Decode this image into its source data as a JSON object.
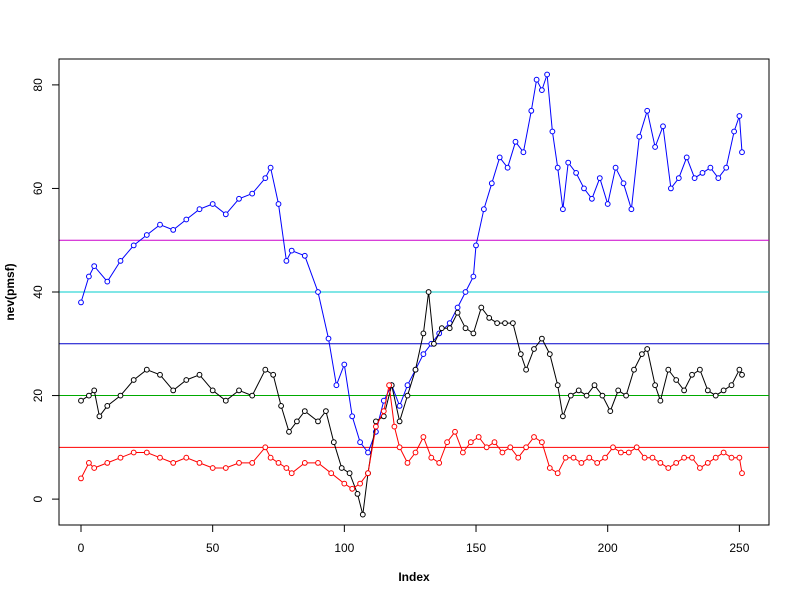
{
  "chart_data": {
    "type": "line",
    "title": "",
    "xlabel": "Index",
    "ylabel": "nev(pmsf)",
    "xlim": [
      0,
      251
    ],
    "ylim": [
      -5,
      85
    ],
    "x_ticks": [
      0,
      50,
      100,
      150,
      200,
      250
    ],
    "y_ticks": [
      0,
      20,
      40,
      60,
      80
    ],
    "grid": false,
    "legend": "none",
    "markers": "open-circle",
    "hlines": [
      {
        "y": 10,
        "color": "#ff0000"
      },
      {
        "y": 20,
        "color": "#00aa00"
      },
      {
        "y": 30,
        "color": "#0000cc"
      },
      {
        "y": 40,
        "color": "#00cccc"
      },
      {
        "y": 50,
        "color": "#cc00cc"
      }
    ],
    "series": [
      {
        "color": "#0000ff",
        "points": [
          [
            0,
            38
          ],
          [
            3,
            43
          ],
          [
            5,
            45
          ],
          [
            10,
            42
          ],
          [
            15,
            46
          ],
          [
            20,
            49
          ],
          [
            25,
            51
          ],
          [
            30,
            53
          ],
          [
            35,
            52
          ],
          [
            40,
            54
          ],
          [
            45,
            56
          ],
          [
            50,
            57
          ],
          [
            55,
            55
          ],
          [
            60,
            58
          ],
          [
            65,
            59
          ],
          [
            70,
            62
          ],
          [
            72,
            64
          ],
          [
            75,
            57
          ],
          [
            78,
            46
          ],
          [
            80,
            48
          ],
          [
            85,
            47
          ],
          [
            90,
            40
          ],
          [
            94,
            31
          ],
          [
            97,
            22
          ],
          [
            100,
            26
          ],
          [
            103,
            16
          ],
          [
            106,
            11
          ],
          [
            109,
            9
          ],
          [
            112,
            13
          ],
          [
            115,
            19
          ],
          [
            118,
            22
          ],
          [
            121,
            18
          ],
          [
            124,
            22
          ],
          [
            127,
            25
          ],
          [
            130,
            28
          ],
          [
            133,
            30
          ],
          [
            136,
            32
          ],
          [
            140,
            34
          ],
          [
            143,
            37
          ],
          [
            146,
            40
          ],
          [
            149,
            43
          ],
          [
            150,
            49
          ],
          [
            153,
            56
          ],
          [
            156,
            61
          ],
          [
            159,
            66
          ],
          [
            162,
            64
          ],
          [
            165,
            69
          ],
          [
            168,
            67
          ],
          [
            171,
            75
          ],
          [
            173,
            81
          ],
          [
            175,
            79
          ],
          [
            177,
            82
          ],
          [
            179,
            71
          ],
          [
            181,
            64
          ],
          [
            183,
            56
          ],
          [
            185,
            65
          ],
          [
            188,
            63
          ],
          [
            191,
            60
          ],
          [
            194,
            58
          ],
          [
            197,
            62
          ],
          [
            200,
            57
          ],
          [
            203,
            64
          ],
          [
            206,
            61
          ],
          [
            209,
            56
          ],
          [
            212,
            70
          ],
          [
            215,
            75
          ],
          [
            218,
            68
          ],
          [
            221,
            72
          ],
          [
            224,
            60
          ],
          [
            227,
            62
          ],
          [
            230,
            66
          ],
          [
            233,
            62
          ],
          [
            236,
            63
          ],
          [
            239,
            64
          ],
          [
            242,
            62
          ],
          [
            245,
            64
          ],
          [
            248,
            71
          ],
          [
            250,
            74
          ],
          [
            251,
            67
          ]
        ]
      },
      {
        "color": "#000000",
        "points": [
          [
            0,
            19
          ],
          [
            3,
            20
          ],
          [
            5,
            21
          ],
          [
            7,
            16
          ],
          [
            10,
            18
          ],
          [
            15,
            20
          ],
          [
            20,
            23
          ],
          [
            25,
            25
          ],
          [
            30,
            24
          ],
          [
            35,
            21
          ],
          [
            40,
            23
          ],
          [
            45,
            24
          ],
          [
            50,
            21
          ],
          [
            55,
            19
          ],
          [
            60,
            21
          ],
          [
            65,
            20
          ],
          [
            70,
            25
          ],
          [
            73,
            24
          ],
          [
            76,
            18
          ],
          [
            79,
            13
          ],
          [
            82,
            15
          ],
          [
            85,
            17
          ],
          [
            90,
            15
          ],
          [
            93,
            17
          ],
          [
            96,
            11
          ],
          [
            99,
            6
          ],
          [
            102,
            5
          ],
          [
            105,
            1
          ],
          [
            107,
            -3
          ],
          [
            109,
            5
          ],
          [
            112,
            15
          ],
          [
            115,
            16
          ],
          [
            118,
            22
          ],
          [
            121,
            15
          ],
          [
            124,
            20
          ],
          [
            127,
            25
          ],
          [
            130,
            32
          ],
          [
            132,
            40
          ],
          [
            134,
            30
          ],
          [
            137,
            33
          ],
          [
            140,
            33
          ],
          [
            143,
            36
          ],
          [
            146,
            33
          ],
          [
            149,
            32
          ],
          [
            152,
            37
          ],
          [
            155,
            35
          ],
          [
            158,
            34
          ],
          [
            161,
            34
          ],
          [
            164,
            34
          ],
          [
            167,
            28
          ],
          [
            169,
            25
          ],
          [
            172,
            29
          ],
          [
            175,
            31
          ],
          [
            178,
            28
          ],
          [
            181,
            22
          ],
          [
            183,
            16
          ],
          [
            186,
            20
          ],
          [
            189,
            21
          ],
          [
            192,
            20
          ],
          [
            195,
            22
          ],
          [
            198,
            20
          ],
          [
            201,
            17
          ],
          [
            204,
            21
          ],
          [
            207,
            20
          ],
          [
            210,
            25
          ],
          [
            213,
            28
          ],
          [
            215,
            29
          ],
          [
            218,
            22
          ],
          [
            220,
            19
          ],
          [
            223,
            25
          ],
          [
            226,
            23
          ],
          [
            229,
            21
          ],
          [
            232,
            24
          ],
          [
            235,
            25
          ],
          [
            238,
            21
          ],
          [
            241,
            20
          ],
          [
            244,
            21
          ],
          [
            247,
            22
          ],
          [
            250,
            25
          ],
          [
            251,
            24
          ]
        ]
      },
      {
        "color": "#ff0000",
        "points": [
          [
            0,
            4
          ],
          [
            3,
            7
          ],
          [
            5,
            6
          ],
          [
            10,
            7
          ],
          [
            15,
            8
          ],
          [
            20,
            9
          ],
          [
            25,
            9
          ],
          [
            30,
            8
          ],
          [
            35,
            7
          ],
          [
            40,
            8
          ],
          [
            45,
            7
          ],
          [
            50,
            6
          ],
          [
            55,
            6
          ],
          [
            60,
            7
          ],
          [
            65,
            7
          ],
          [
            70,
            10
          ],
          [
            72,
            8
          ],
          [
            75,
            7
          ],
          [
            78,
            6
          ],
          [
            80,
            5
          ],
          [
            85,
            7
          ],
          [
            90,
            7
          ],
          [
            95,
            5
          ],
          [
            100,
            3
          ],
          [
            103,
            2
          ],
          [
            106,
            3
          ],
          [
            109,
            5
          ],
          [
            112,
            14
          ],
          [
            115,
            17
          ],
          [
            117,
            22
          ],
          [
            119,
            14
          ],
          [
            121,
            10
          ],
          [
            124,
            7
          ],
          [
            127,
            9
          ],
          [
            130,
            12
          ],
          [
            133,
            8
          ],
          [
            136,
            7
          ],
          [
            139,
            11
          ],
          [
            142,
            13
          ],
          [
            145,
            9
          ],
          [
            148,
            11
          ],
          [
            151,
            12
          ],
          [
            154,
            10
          ],
          [
            157,
            11
          ],
          [
            160,
            9
          ],
          [
            163,
            10
          ],
          [
            166,
            8
          ],
          [
            169,
            10
          ],
          [
            172,
            12
          ],
          [
            175,
            11
          ],
          [
            178,
            6
          ],
          [
            181,
            5
          ],
          [
            184,
            8
          ],
          [
            187,
            8
          ],
          [
            190,
            7
          ],
          [
            193,
            8
          ],
          [
            196,
            7
          ],
          [
            199,
            8
          ],
          [
            202,
            10
          ],
          [
            205,
            9
          ],
          [
            208,
            9
          ],
          [
            211,
            10
          ],
          [
            214,
            8
          ],
          [
            217,
            8
          ],
          [
            220,
            7
          ],
          [
            223,
            6
          ],
          [
            226,
            7
          ],
          [
            229,
            8
          ],
          [
            232,
            8
          ],
          [
            235,
            6
          ],
          [
            238,
            7
          ],
          [
            241,
            8
          ],
          [
            244,
            9
          ],
          [
            247,
            8
          ],
          [
            250,
            8
          ],
          [
            251,
            5
          ]
        ]
      }
    ]
  }
}
